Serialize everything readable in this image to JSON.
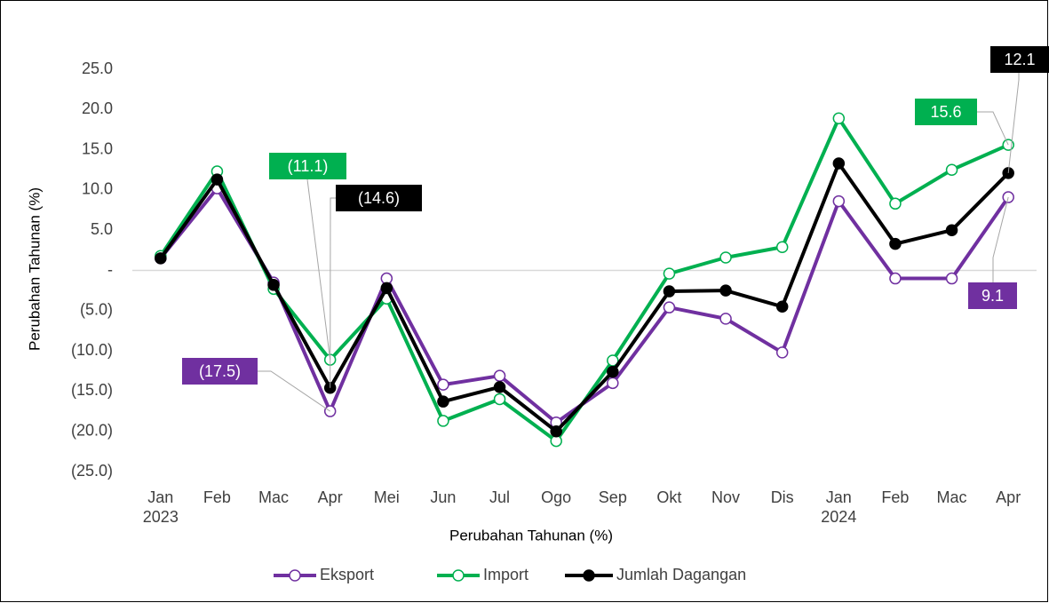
{
  "chart_data": {
    "type": "line",
    "y_label": "Perubahan Tahunan (%)",
    "x_label": "Perubahan Tahunan (%)",
    "categories": [
      "Jan\n2023",
      "Feb",
      "Mac",
      "Apr",
      "Mei",
      "Jun",
      "Jul",
      "Ogo",
      "Sep",
      "Okt",
      "Nov",
      "Dis",
      "Jan\n2024",
      "Feb",
      "Mac",
      "Apr"
    ],
    "ylim": [
      -25,
      25
    ],
    "yticks": [
      {
        "value": 25,
        "label": "25.0"
      },
      {
        "value": 20,
        "label": "20.0"
      },
      {
        "value": 15,
        "label": "15.0"
      },
      {
        "value": 10,
        "label": "10.0"
      },
      {
        "value": 5,
        "label": "5.0"
      },
      {
        "value": 0,
        "label": "-"
      },
      {
        "value": -5,
        "label": "(5.0)"
      },
      {
        "value": -10,
        "label": "(10.0)"
      },
      {
        "value": -15,
        "label": "(15.0)"
      },
      {
        "value": -20,
        "label": "(20.0)"
      },
      {
        "value": -25,
        "label": "(25.0)"
      }
    ],
    "grid": false,
    "legend": "bottom",
    "series": [
      {
        "name": "Eksport",
        "color": "#7030a0",
        "marker": "open",
        "values": [
          1.5,
          10.2,
          -1.5,
          -17.5,
          -1.0,
          -14.2,
          -13.1,
          -18.9,
          -14.0,
          -4.6,
          -6.0,
          -10.2,
          8.6,
          -1.0,
          -1.0,
          9.1
        ],
        "value_labels": [
          null,
          null,
          null,
          "(17.5)",
          null,
          null,
          null,
          null,
          null,
          null,
          null,
          null,
          null,
          null,
          null,
          "9.1"
        ]
      },
      {
        "name": "Import",
        "color": "#00b050",
        "marker": "open",
        "values": [
          1.8,
          12.3,
          -2.3,
          -11.1,
          -3.5,
          -18.7,
          -16.0,
          -21.2,
          -11.2,
          -0.4,
          1.6,
          2.9,
          18.9,
          8.3,
          12.5,
          15.6
        ],
        "value_labels": [
          null,
          null,
          null,
          "(11.1)",
          null,
          null,
          null,
          null,
          null,
          null,
          null,
          null,
          null,
          null,
          null,
          "15.6"
        ]
      },
      {
        "name": "Jumlah Dagangan",
        "color": "#000000",
        "marker": "filled",
        "values": [
          1.5,
          11.3,
          -1.8,
          -14.6,
          -2.2,
          -16.3,
          -14.5,
          -20.0,
          -12.6,
          -2.6,
          -2.5,
          -4.5,
          13.3,
          3.3,
          5.0,
          12.1
        ],
        "value_labels": [
          null,
          null,
          null,
          "(14.6)",
          null,
          null,
          null,
          null,
          null,
          null,
          null,
          null,
          null,
          null,
          null,
          "12.1"
        ]
      }
    ]
  }
}
